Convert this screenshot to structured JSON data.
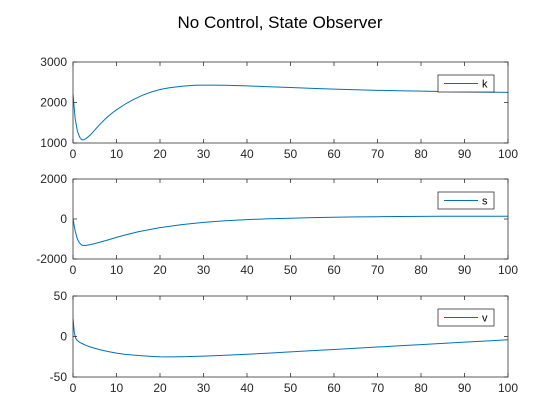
{
  "figure": {
    "title": "No Control, State Observer"
  },
  "colors": {
    "line": "#0072BD",
    "axis": "#262626",
    "background": "#ffffff"
  },
  "chart_data": [
    {
      "type": "line",
      "xlim": [
        0,
        100
      ],
      "ylim": [
        1000,
        3000
      ],
      "xticks": [
        "0",
        "10",
        "20",
        "30",
        "40",
        "50",
        "60",
        "70",
        "80",
        "90",
        "100"
      ],
      "yticks": [
        "1000",
        "2000",
        "3000"
      ],
      "grid": false,
      "legend_position": "top-right",
      "series": [
        {
          "name": "k",
          "x": [
            0,
            0.5,
            1,
            1.5,
            2,
            2.5,
            3,
            4,
            5,
            6,
            7,
            8,
            9,
            10,
            12,
            14,
            16,
            18,
            20,
            22,
            25,
            28,
            30,
            32,
            35,
            40,
            45,
            50,
            55,
            60,
            65,
            70,
            75,
            80,
            85,
            90,
            95,
            100
          ],
          "y": [
            2200,
            1600,
            1300,
            1150,
            1080,
            1080,
            1110,
            1200,
            1320,
            1440,
            1550,
            1650,
            1740,
            1820,
            1960,
            2080,
            2180,
            2260,
            2320,
            2360,
            2400,
            2425,
            2430,
            2430,
            2425,
            2410,
            2390,
            2370,
            2350,
            2330,
            2315,
            2300,
            2290,
            2280,
            2270,
            2260,
            2255,
            2250
          ]
        }
      ]
    },
    {
      "type": "line",
      "xlim": [
        0,
        100
      ],
      "ylim": [
        -2000,
        2000
      ],
      "xticks": [
        "0",
        "10",
        "20",
        "30",
        "40",
        "50",
        "60",
        "70",
        "80",
        "90",
        "100"
      ],
      "yticks": [
        "-2000",
        "0",
        "2000"
      ],
      "grid": false,
      "legend_position": "top-right",
      "series": [
        {
          "name": "s",
          "x": [
            0,
            0.5,
            1,
            1.5,
            2,
            2.5,
            3,
            4,
            5,
            6,
            8,
            10,
            12,
            15,
            18,
            20,
            25,
            30,
            35,
            40,
            45,
            50,
            55,
            60,
            65,
            70,
            75,
            80,
            85,
            90,
            95,
            100
          ],
          "y": [
            0,
            -600,
            -1000,
            -1200,
            -1300,
            -1330,
            -1320,
            -1280,
            -1230,
            -1170,
            -1050,
            -920,
            -800,
            -640,
            -510,
            -430,
            -280,
            -170,
            -90,
            -30,
            10,
            40,
            70,
            90,
            105,
            115,
            125,
            130,
            135,
            140,
            140,
            140
          ]
        }
      ]
    },
    {
      "type": "line",
      "xlim": [
        0,
        100
      ],
      "ylim": [
        -50,
        50
      ],
      "xticks": [
        "0",
        "10",
        "20",
        "30",
        "40",
        "50",
        "60",
        "70",
        "80",
        "90",
        "100"
      ],
      "yticks": [
        "-50",
        "0",
        "50"
      ],
      "grid": false,
      "legend_position": "top-right",
      "series": [
        {
          "name": "v",
          "x": [
            0,
            0.3,
            0.6,
            1,
            1.5,
            2,
            3,
            4,
            5,
            6,
            8,
            10,
            12,
            15,
            18,
            20,
            22,
            25,
            30,
            35,
            40,
            45,
            50,
            55,
            60,
            65,
            70,
            75,
            80,
            85,
            90,
            95,
            100
          ],
          "y": [
            22,
            5,
            -2,
            -5,
            -7,
            -8.5,
            -11,
            -13,
            -14.5,
            -16,
            -18.5,
            -20.5,
            -22,
            -23.5,
            -24.5,
            -25,
            -25.2,
            -25,
            -24.3,
            -23.2,
            -21.9,
            -20.5,
            -19,
            -17.5,
            -16,
            -14.5,
            -13,
            -11.5,
            -10,
            -8.5,
            -7,
            -5.5,
            -4
          ]
        }
      ]
    }
  ]
}
